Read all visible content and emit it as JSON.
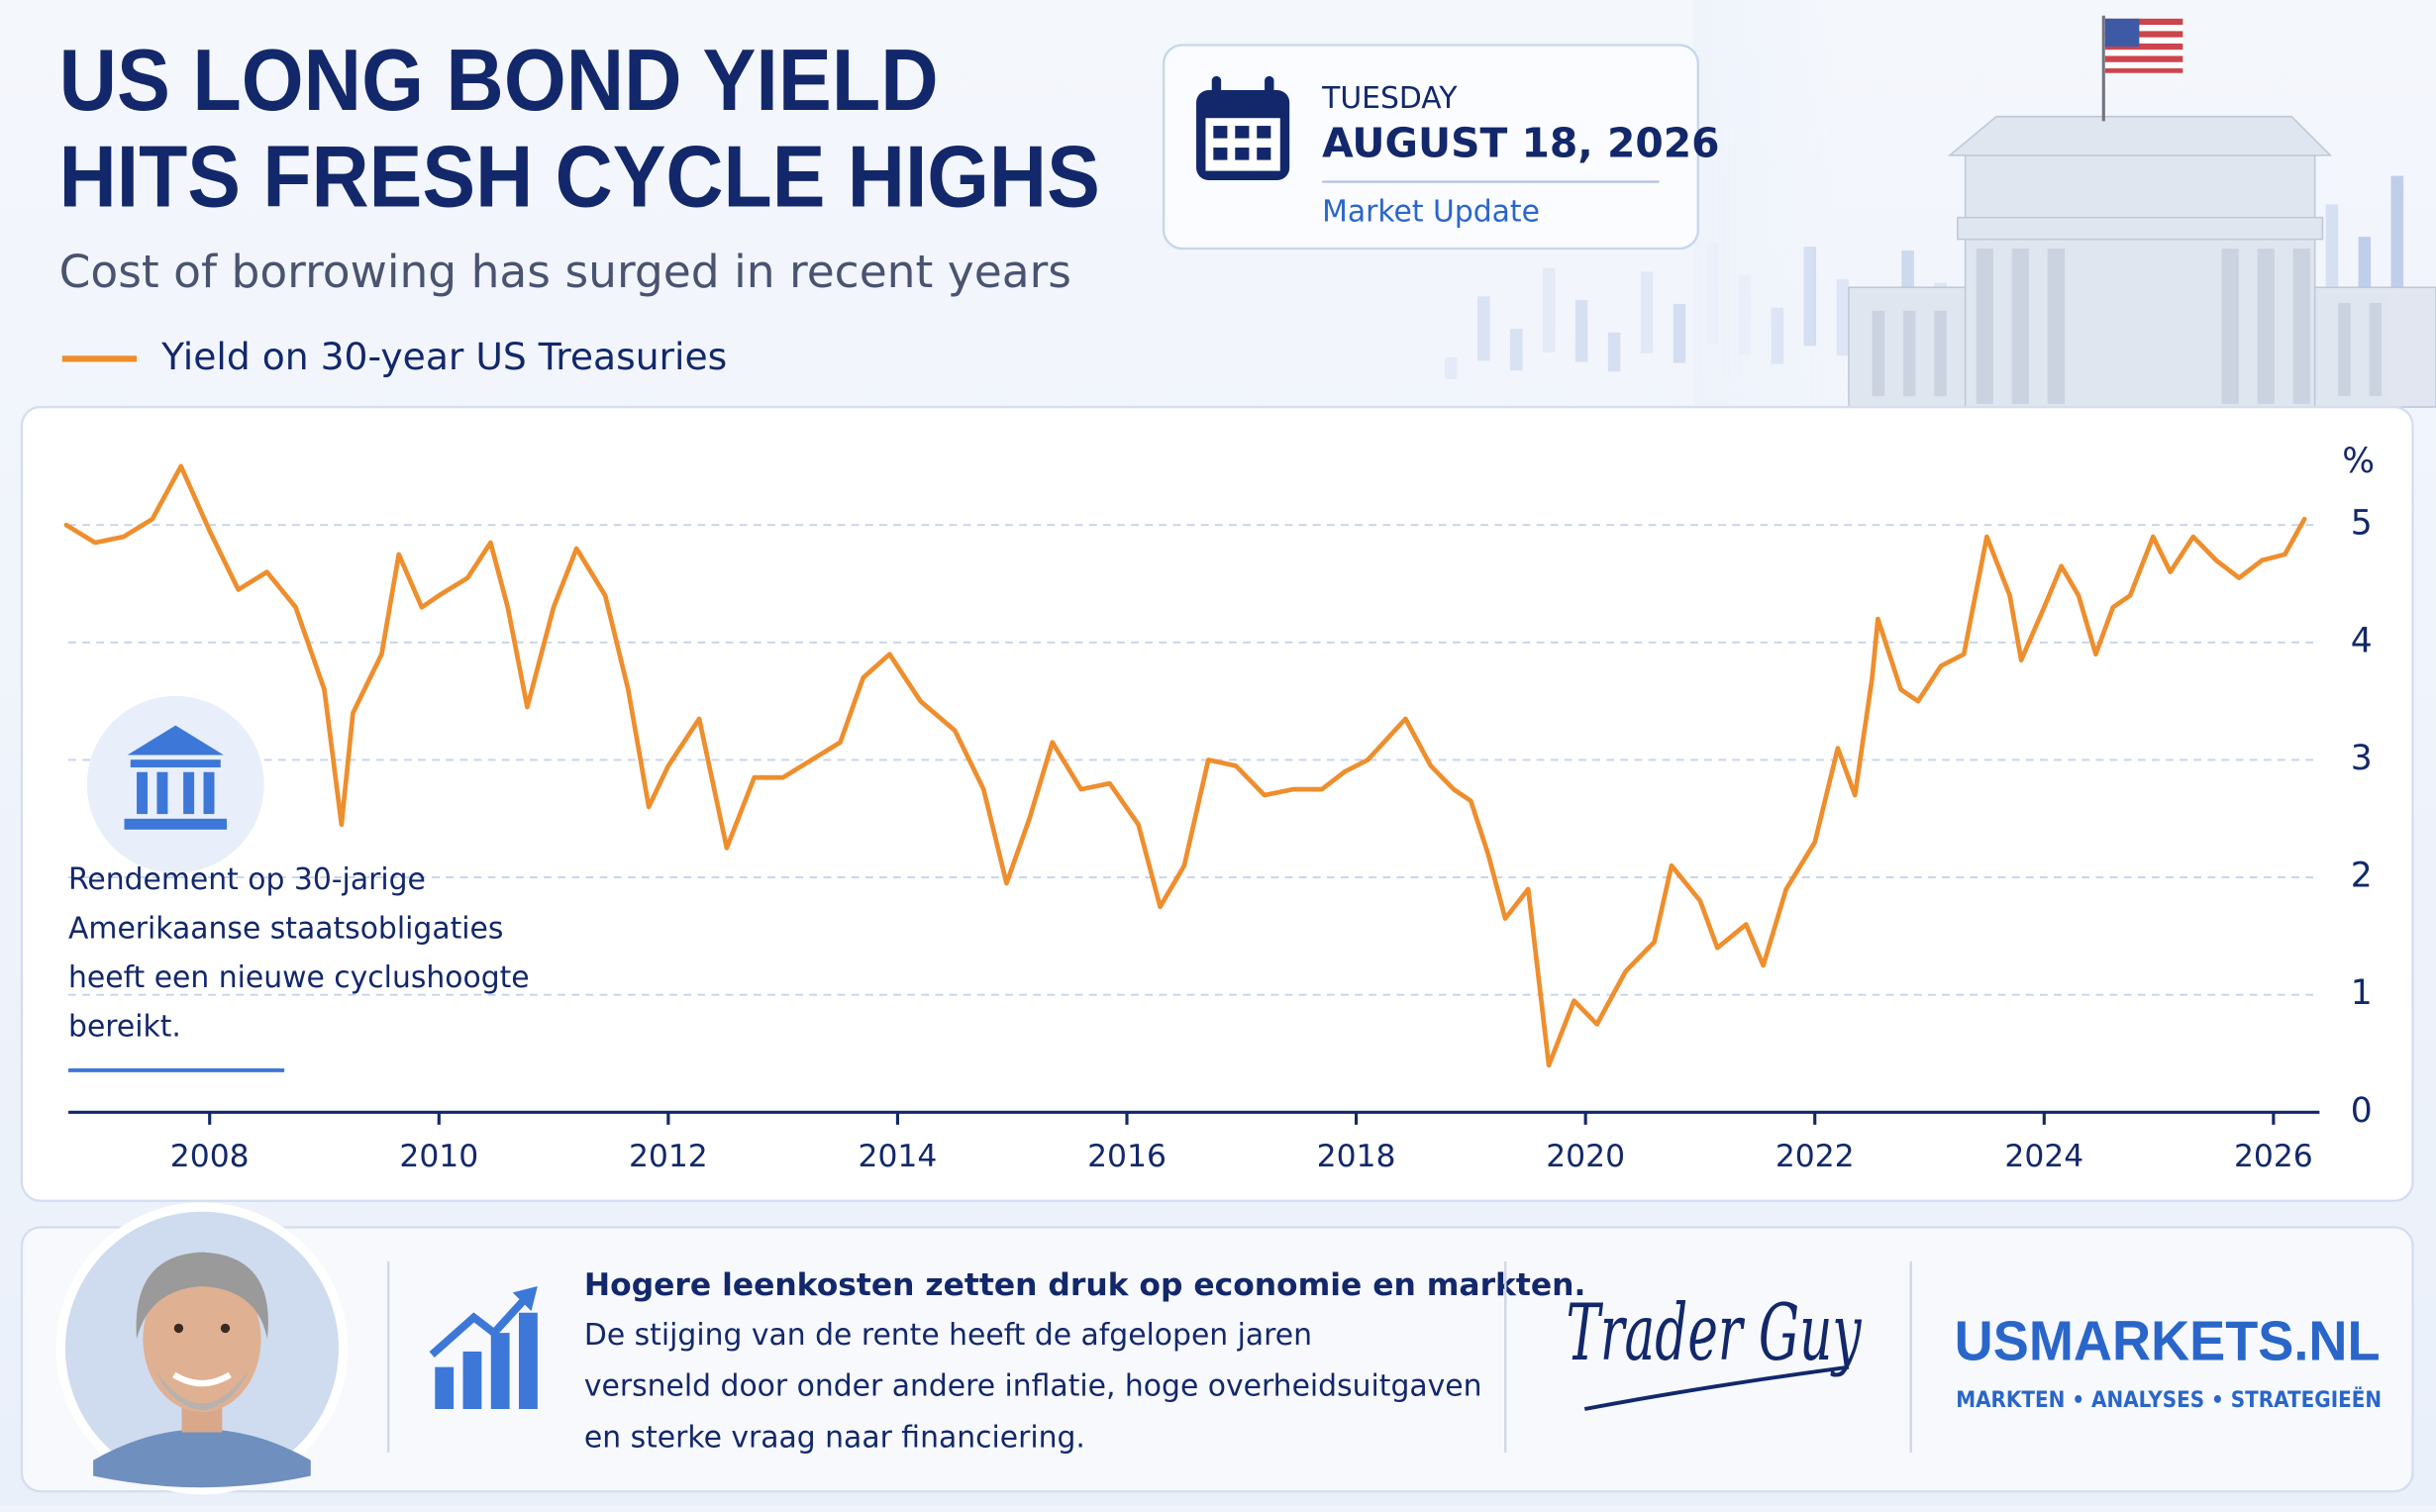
{
  "header": {
    "title_lines": [
      "US LONG BOND YIELD",
      "HITS FRESH CYCLE HIGHS"
    ],
    "subtitle": "Cost of borrowing has surged in recent years"
  },
  "date_card": {
    "weekday": "TUESDAY",
    "date": "AUGUST 18, 2026",
    "label": "Market Update"
  },
  "chart_data": {
    "type": "line",
    "y_unit": "%",
    "x": [
      2006.75,
      2007.0,
      2007.25,
      2007.5,
      2007.75,
      2008.0,
      2008.25,
      2008.5,
      2008.75,
      2009.0,
      2009.15,
      2009.25,
      2009.5,
      2009.65,
      2009.85,
      2010.0,
      2010.25,
      2010.45,
      2010.6,
      2010.77,
      2011.0,
      2011.2,
      2011.45,
      2011.65,
      2011.83,
      2012.0,
      2012.27,
      2012.51,
      2012.75,
      2013.0,
      2013.25,
      2013.5,
      2013.7,
      2013.93,
      2014.2,
      2014.5,
      2014.75,
      2014.95,
      2015.15,
      2015.35,
      2015.6,
      2015.85,
      2016.1,
      2016.29,
      2016.5,
      2016.71,
      2016.95,
      2017.2,
      2017.45,
      2017.7,
      2017.9,
      2018.1,
      2018.43,
      2018.65,
      2018.85,
      2019.0,
      2019.15,
      2019.3,
      2019.5,
      2019.68,
      2019.9,
      2020.1,
      2020.35,
      2020.6,
      2020.75,
      2021.0,
      2021.15,
      2021.4,
      2021.55,
      2021.75,
      2022.0,
      2022.2,
      2022.35,
      2022.5,
      2022.55,
      2022.75,
      2022.9,
      2023.1,
      2023.3,
      2023.5,
      2023.7,
      2023.8,
      2024.0,
      2024.15,
      2024.3,
      2024.45,
      2024.6,
      2024.75,
      2024.95,
      2025.1,
      2025.3,
      2025.5,
      2025.7,
      2025.9,
      2026.1,
      2026.27
    ],
    "series": [
      {
        "name": "Yield on 30-year US Treasuries",
        "color": "#ee8e2d",
        "values": [
          5.0,
          4.85,
          4.9,
          5.05,
          5.5,
          4.95,
          4.45,
          4.6,
          4.3,
          3.6,
          2.45,
          3.4,
          3.9,
          4.75,
          4.3,
          4.4,
          4.55,
          4.85,
          4.3,
          3.45,
          4.3,
          4.8,
          4.4,
          3.6,
          2.6,
          2.95,
          3.35,
          2.25,
          2.85,
          2.85,
          3.0,
          3.15,
          3.7,
          3.9,
          3.5,
          3.25,
          2.75,
          1.95,
          2.5,
          3.15,
          2.75,
          2.8,
          2.45,
          1.75,
          2.1,
          3.0,
          2.95,
          2.7,
          2.75,
          2.75,
          2.9,
          3.0,
          3.35,
          2.95,
          2.75,
          2.65,
          2.2,
          1.65,
          1.9,
          0.4,
          0.95,
          0.75,
          1.2,
          1.45,
          2.1,
          1.8,
          1.4,
          1.6,
          1.25,
          1.9,
          2.3,
          3.1,
          2.7,
          3.7,
          4.2,
          3.6,
          3.5,
          3.8,
          3.9,
          4.9,
          4.4,
          3.85,
          4.3,
          4.65,
          4.4,
          3.9,
          4.3,
          4.4,
          4.9,
          4.6,
          4.9,
          4.7,
          4.55,
          4.7,
          4.75,
          5.05
        ]
      }
    ],
    "xlim": [
      2006.7,
      2026.3
    ],
    "xticks": [
      2008,
      2010,
      2012,
      2014,
      2016,
      2018,
      2020,
      2022,
      2024,
      2026
    ],
    "ylim": [
      0,
      5.6
    ],
    "yticks": [
      0,
      1,
      2,
      3,
      4,
      5
    ],
    "grid": true
  },
  "annotation": {
    "lines": [
      "Rendement op 30-jarige",
      "Amerikaanse staatsobligaties",
      "heeft een nieuwe cyclushoogte",
      "bereikt."
    ]
  },
  "footer": {
    "headline": "Hogere leenkosten zetten druk op economie en markten.",
    "body_lines": [
      "De stijging van de rente heeft de afgelopen jaren",
      "versneld door onder andere inflatie, hoge overheidsuitgaven",
      "en sterke vraag naar financiering."
    ],
    "author": "Trader Guy",
    "brand": "USMARKETS.NL",
    "brand_tagline": "MARKTEN • ANALYSES • STRATEGIEËN"
  }
}
